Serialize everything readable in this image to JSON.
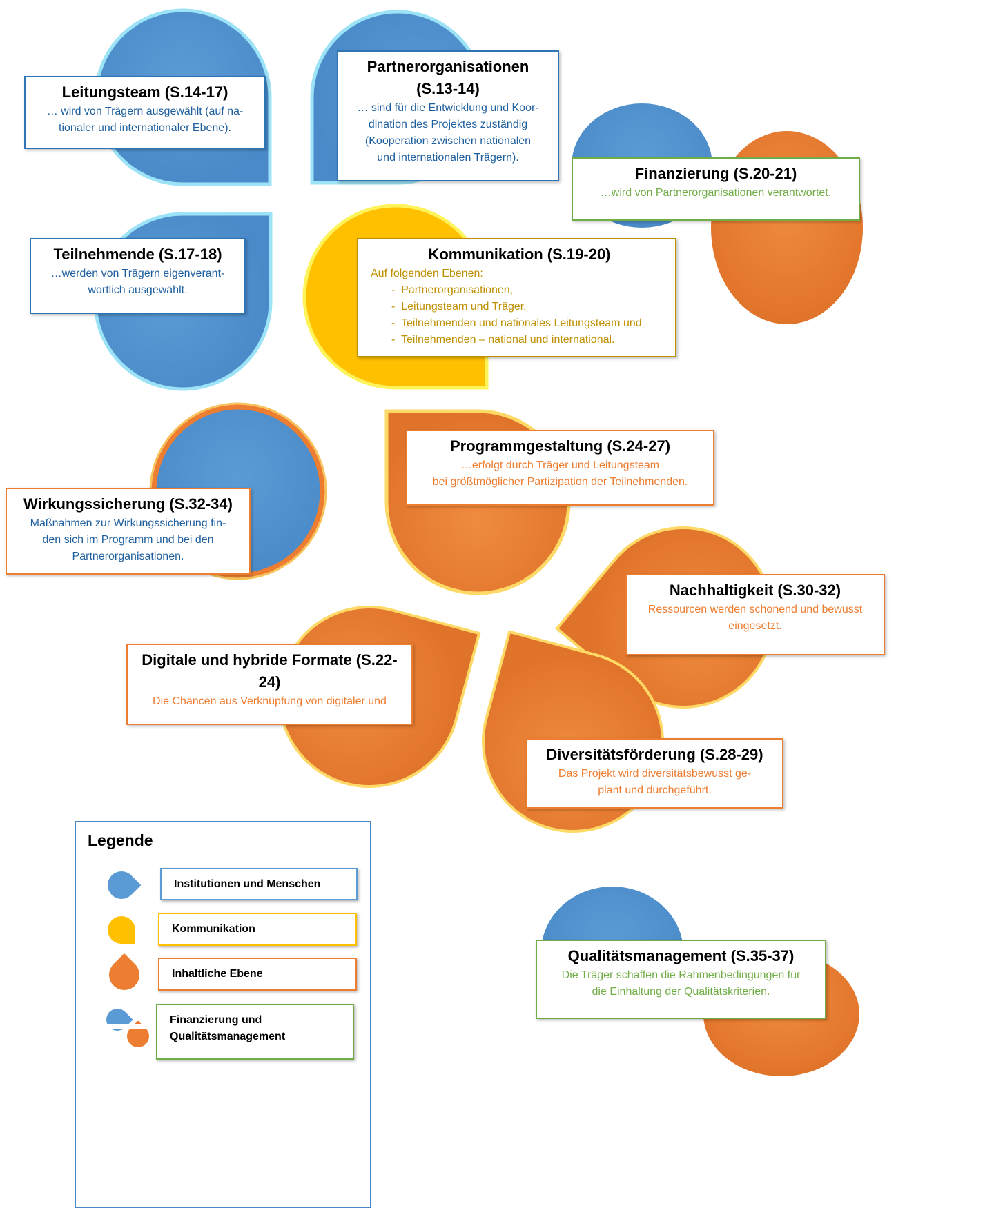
{
  "nodes": [
    {
      "title": "Leitungsteam (S.14-17)",
      "lines": [
        "… wird von Trägern ausgewählt (auf na-",
        "tionaler und internationaler Ebene)."
      ]
    },
    {
      "title": "Partnerorganisationen (S.13-14)",
      "lines": [
        "… sind für die Entwicklung und Koor-",
        "dination des Projektes zuständig",
        "(Kooperation zwischen nationalen",
        "und internationalen Trägern)."
      ]
    },
    {
      "title": "Finanzierung (S.20-21)",
      "lines": [
        "…wird von Partnerorganisationen verantwortet."
      ]
    },
    {
      "title": "Teilnehmende (S.17-18)",
      "lines": [
        "…werden von Trägern eigenverant-",
        "wortlich ausgewählt."
      ]
    },
    {
      "title": "Kommunikation (S.19-20)",
      "lines": [
        "Auf folgenden Ebenen:"
      ],
      "items": [
        "Partnerorganisationen,",
        "Leitungsteam und Träger,",
        "Teilnehmenden und nationales Leitungsteam und",
        "Teilnehmenden – national und international."
      ]
    },
    {
      "title": "Programmgestaltung (S.24-27)",
      "lines": [
        "…erfolgt durch Träger und Leitungsteam",
        "bei größtmöglicher Partizipation der Teilnehmenden."
      ]
    },
    {
      "title": "Wirkungssicherung (S.32-34)",
      "lines": [
        "Maßnahmen zur Wirkungssicherung fin-",
        "den sich im Programm und bei den",
        "Partnerorganisationen."
      ]
    },
    {
      "title": "Nachhaltigkeit (S.30-32)",
      "lines": [
        "Ressourcen werden schonend und bewusst",
        "eingesetzt."
      ]
    },
    {
      "title": "Digitale und hybride Formate (S.22-24)",
      "lines": [
        "Die Chancen aus Verknüpfung von digitaler und"
      ]
    },
    {
      "title": "Diversitätsförderung (S.28-29)",
      "lines": [
        "Das Projekt wird diversitätsbewusst ge-",
        "plant und durchgeführt."
      ]
    },
    {
      "title": "Qualitätsmanagement (S.35-37)",
      "lines": [
        "Die Träger schaffen die Rahmenbedingungen für",
        "die Einhaltung der Qualitätskriterien."
      ]
    }
  ],
  "legend": {
    "title": "Legende",
    "items": [
      "Institutionen und Menschen",
      "Kommunikation",
      "Inhaltliche Ebene",
      "Finanzierung und Qualitätsmanagement"
    ]
  }
}
